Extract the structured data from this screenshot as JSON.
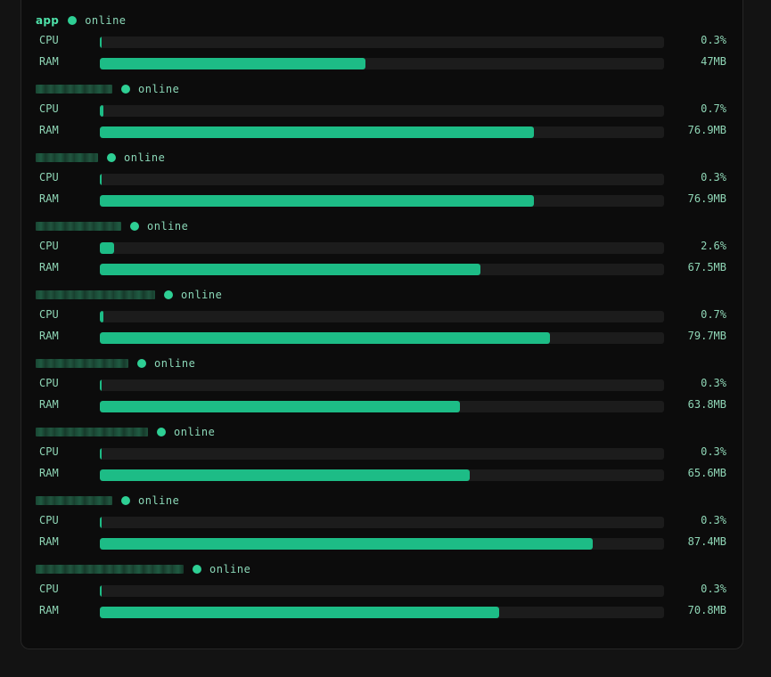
{
  "colors": {
    "accent": "#1dbc86",
    "status_dot": "#2ecf94",
    "track": "#1c1c1c",
    "background": "#0c0c0c"
  },
  "labels": {
    "cpu": "CPU",
    "ram": "RAM"
  },
  "top_bar_fill": 0.78,
  "processes": [
    {
      "name": "app",
      "redacted": false,
      "status": "online",
      "cpu": "0.3%",
      "cpu_fill": 0.003,
      "ram": "47MB",
      "ram_fill": 0.47
    },
    {
      "name": "",
      "redacted": true,
      "status": "online",
      "cpu": "0.7%",
      "cpu_fill": 0.007,
      "ram": "76.9MB",
      "ram_fill": 0.769
    },
    {
      "name": "",
      "redacted": true,
      "status": "online",
      "cpu": "0.3%",
      "cpu_fill": 0.003,
      "ram": "76.9MB",
      "ram_fill": 0.769
    },
    {
      "name": "",
      "redacted": true,
      "status": "online",
      "cpu": "2.6%",
      "cpu_fill": 0.026,
      "ram": "67.5MB",
      "ram_fill": 0.675
    },
    {
      "name": "",
      "redacted": true,
      "status": "online",
      "cpu": "0.7%",
      "cpu_fill": 0.007,
      "ram": "79.7MB",
      "ram_fill": 0.797
    },
    {
      "name": "",
      "redacted": true,
      "status": "online",
      "cpu": "0.3%",
      "cpu_fill": 0.003,
      "ram": "63.8MB",
      "ram_fill": 0.638
    },
    {
      "name": "",
      "redacted": true,
      "status": "online",
      "cpu": "0.3%",
      "cpu_fill": 0.003,
      "ram": "65.6MB",
      "ram_fill": 0.656
    },
    {
      "name": "",
      "redacted": true,
      "status": "online",
      "cpu": "0.3%",
      "cpu_fill": 0.003,
      "ram": "87.4MB",
      "ram_fill": 0.874
    },
    {
      "name": "",
      "redacted": true,
      "status": "online",
      "cpu": "0.3%",
      "cpu_fill": 0.003,
      "ram": "70.8MB",
      "ram_fill": 0.708
    }
  ]
}
